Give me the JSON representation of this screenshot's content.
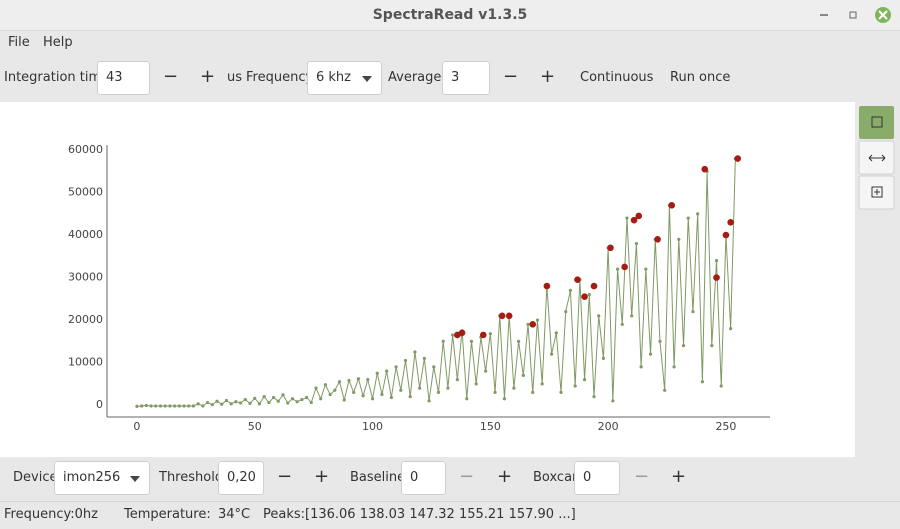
{
  "window": {
    "title": "SpectraRead v1.3.5"
  },
  "menu": [
    "File",
    "Help"
  ],
  "toolbar": {
    "integration_label": "Integration time:",
    "integration_value": "43",
    "minus": "−",
    "plus": "+",
    "unit": "us",
    "frequency_label": "Frequency:",
    "frequency_value": "6 khz",
    "averages_label": "Averages:",
    "averages_value": "3",
    "continuous": "Continuous",
    "run_once": "Run once"
  },
  "chart_data": {
    "type": "line",
    "x": [
      0,
      2,
      4,
      6,
      8,
      10,
      12,
      14,
      16,
      18,
      20,
      22,
      24,
      26,
      28,
      30,
      32,
      34,
      36,
      38,
      40,
      42,
      44,
      46,
      48,
      50,
      52,
      54,
      56,
      58,
      60,
      62,
      64,
      66,
      68,
      70,
      72,
      74,
      76,
      78,
      80,
      82,
      84,
      86,
      88,
      90,
      92,
      94,
      96,
      98,
      100,
      102,
      104,
      106,
      108,
      110,
      112,
      114,
      116,
      118,
      120,
      122,
      124,
      126,
      128,
      130,
      132,
      134,
      136,
      138,
      140,
      142,
      144,
      146,
      148,
      150,
      152,
      154,
      156,
      158,
      160,
      162,
      164,
      166,
      168,
      170,
      172,
      174,
      176,
      178,
      180,
      182,
      184,
      186,
      188,
      190,
      192,
      194,
      196,
      198,
      200,
      202,
      204,
      206,
      208,
      210,
      212,
      214,
      216,
      218,
      220,
      222,
      224,
      226,
      228,
      230,
      232,
      234,
      236,
      238,
      240,
      242,
      244,
      246,
      248,
      250,
      252,
      254
    ],
    "series": [
      {
        "color": "#7f9a63",
        "mode": "lines+markers",
        "values": [
          -300,
          -200,
          -100,
          -200,
          -200,
          -200,
          -200,
          -200,
          -200,
          -200,
          -200,
          -200,
          -200,
          300,
          -200,
          600,
          100,
          900,
          200,
          1100,
          300,
          800,
          500,
          1300,
          400,
          1600,
          300,
          2000,
          600,
          1800,
          900,
          2400,
          500,
          1500,
          800,
          1300,
          1800,
          600,
          4000,
          1500,
          4800,
          2500,
          3500,
          5500,
          1200,
          5800,
          3000,
          6200,
          2200,
          6000,
          1500,
          7500,
          2500,
          8000,
          1800,
          9000,
          3500,
          10500,
          2000,
          12500,
          4000,
          11000,
          1000,
          9000,
          3000,
          15000,
          4000,
          16500,
          6000,
          17500,
          1500,
          15000,
          5000,
          16000,
          8000,
          16800,
          3000,
          21000,
          1500,
          21000,
          4000,
          15000,
          7000,
          19000,
          3000,
          20000,
          5000,
          28000,
          12000,
          17000,
          3000,
          22000,
          27000,
          4500,
          29500,
          6000,
          26000,
          2000,
          21000,
          11000,
          37000,
          1000,
          32000,
          19000,
          44000,
          21000,
          38000,
          9000,
          32000,
          12000,
          39000,
          15000,
          3500,
          47000,
          9000,
          39000,
          14000,
          44000,
          22000,
          45000,
          5500,
          55000,
          14000,
          34000,
          4500,
          40000,
          18000,
          58000
        ]
      },
      {
        "color": "#a51d12",
        "mode": "markers",
        "x": [
          136,
          138,
          147,
          155,
          158,
          168,
          174,
          187,
          190,
          194,
          201,
          207,
          211,
          213,
          221,
          227,
          241,
          246,
          250,
          252,
          255
        ],
        "values": [
          16500,
          17000,
          16500,
          21000,
          21000,
          19000,
          28000,
          29500,
          25500,
          28000,
          37000,
          32500,
          43500,
          44500,
          39000,
          47000,
          55500,
          30000,
          40000,
          43000,
          58000
        ]
      }
    ],
    "xlim": [
      -12.7,
      268.7
    ],
    "ylim": [
      -2800,
      61200
    ],
    "xticks": [
      0,
      50,
      100,
      150,
      200,
      250
    ],
    "yticks": [
      0,
      10000,
      20000,
      30000,
      40000,
      50000,
      60000
    ]
  },
  "controls": {
    "device_label": "Device:",
    "device_value": "imon256",
    "threshold_label": "Threshold:",
    "threshold_value": "0,20",
    "minus": "−",
    "plus": "+",
    "baseline_label": "Baseline:",
    "baseline_value": "0",
    "boxcar_label": "Boxcar:",
    "boxcar_value": "0"
  },
  "status": {
    "frequency": "Frequency:0hz",
    "temperature_label": "Temperature:",
    "temperature_value": "34°C",
    "peaks": "Peaks:[136.06 138.03 147.32 155.21 157.90 ...]"
  }
}
